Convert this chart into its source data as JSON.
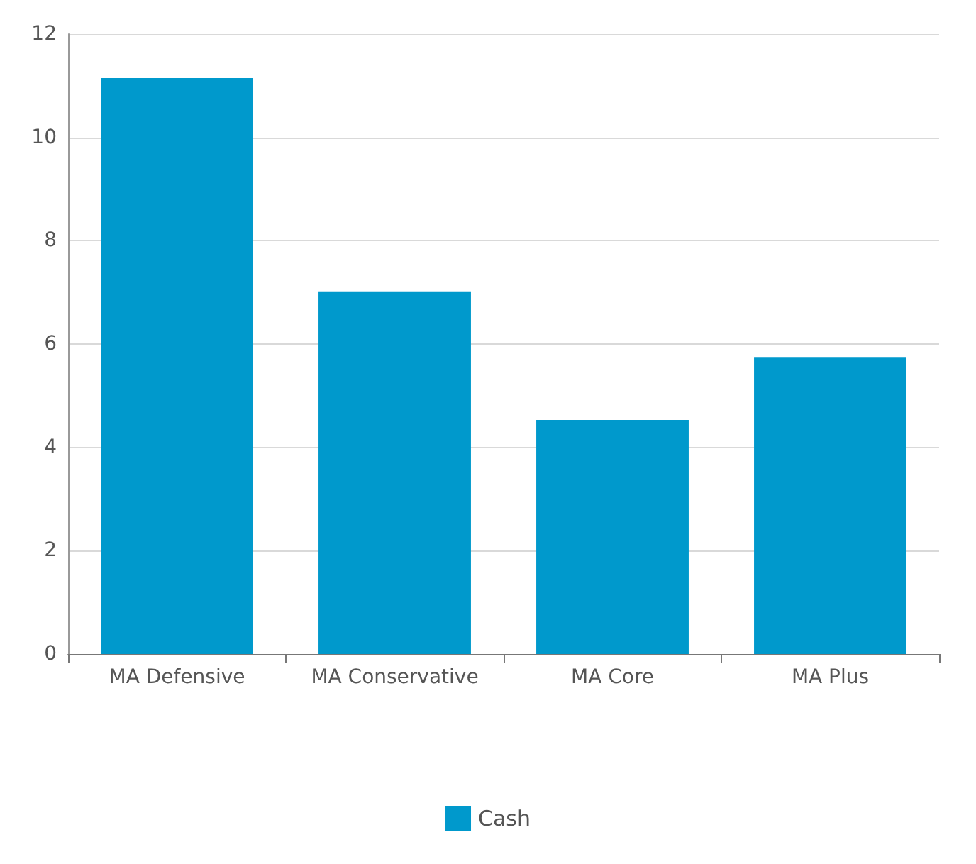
{
  "chart_data": {
    "type": "bar",
    "categories": [
      "MA Defensive",
      "MA Conservative",
      "MA Core",
      "MA Plus"
    ],
    "series": [
      {
        "name": "Cash",
        "color": "#0099cc",
        "values": [
          11.15,
          7.02,
          4.53,
          5.75
        ]
      }
    ],
    "ylim": [
      0,
      12
    ],
    "yticks": [
      0,
      2,
      4,
      6,
      8,
      10,
      12
    ],
    "grid": "y",
    "legend": "bottom"
  }
}
